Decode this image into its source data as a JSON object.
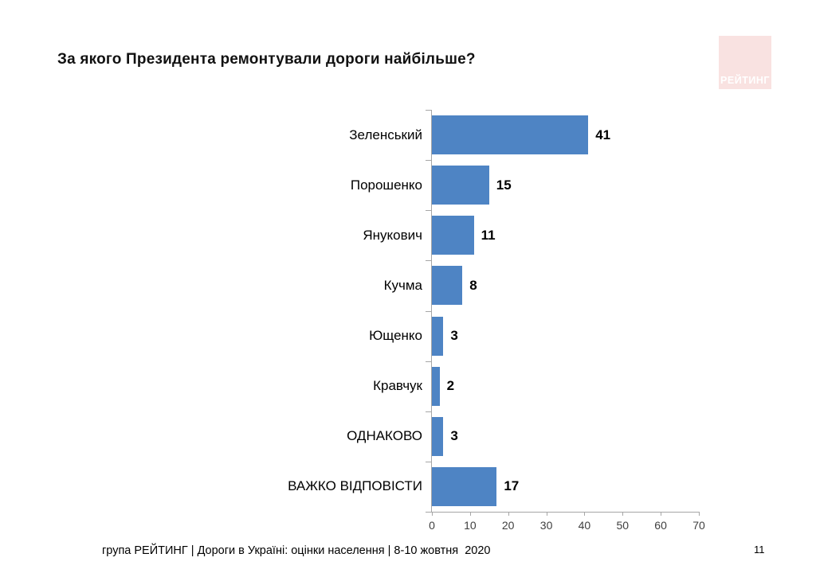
{
  "title": "За якого Президента ремонтували дороги найбільше?",
  "logo": {
    "label": "РЕЙТИНГ",
    "background": "#f9e2e1",
    "text_color": "#ffffff"
  },
  "chart_data": {
    "type": "bar",
    "orientation": "horizontal",
    "title": "За якого Президента ремонтували дороги найбільше?",
    "categories": [
      "Зеленський",
      "Порошенко",
      "Янукович",
      "Кучма",
      "Ющенко",
      "Кравчук",
      "ОДНАКОВО",
      "ВАЖКО ВІДПОВІСТИ"
    ],
    "values": [
      41,
      15,
      11,
      8,
      3,
      2,
      3,
      17
    ],
    "xlim": [
      0,
      70
    ],
    "x_ticks": [
      "0",
      "10",
      "20",
      "30",
      "40",
      "50",
      "60",
      "70"
    ],
    "bar_color": "#4e84c4",
    "axis_color": "#a6a6a6",
    "data_labels": true,
    "grid": false,
    "legend": false
  },
  "footer": {
    "source": "група РЕЙТИНГ | Дороги в Україні: оцінки населення | 8-10 жовтня  2020",
    "page_number": "11"
  }
}
